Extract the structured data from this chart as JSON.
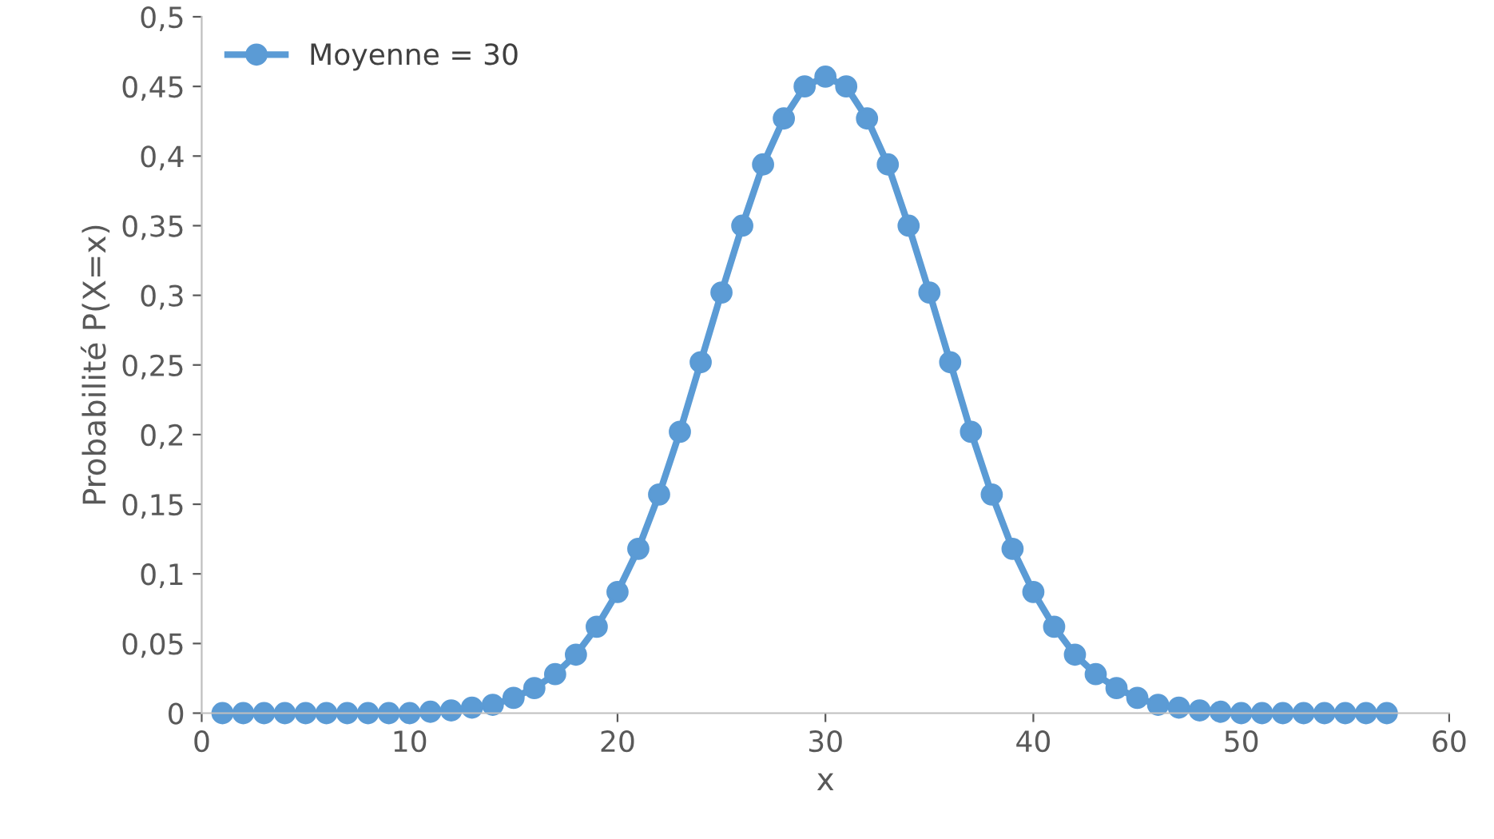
{
  "chart_data": {
    "type": "line",
    "xlabel": "x",
    "ylabel": "Probabilité P(X=x)",
    "x": [
      1,
      2,
      3,
      4,
      5,
      6,
      7,
      8,
      9,
      10,
      11,
      12,
      13,
      14,
      15,
      16,
      17,
      18,
      19,
      20,
      21,
      22,
      23,
      24,
      25,
      26,
      27,
      28,
      29,
      30,
      31,
      32,
      33,
      34,
      35,
      36,
      37,
      38,
      39,
      40,
      41,
      42,
      43,
      44,
      45,
      46,
      47,
      48,
      49,
      50,
      51,
      52,
      53,
      54,
      55,
      56,
      57
    ],
    "series": [
      {
        "name": "Moyenne = 30",
        "color": "#5b9bd5",
        "values": [
          0,
          0,
          0,
          0,
          0,
          0,
          0,
          0,
          0,
          0,
          0.001,
          0.002,
          0.004,
          0.006,
          0.011,
          0.018,
          0.028,
          0.042,
          0.062,
          0.087,
          0.118,
          0.157,
          0.202,
          0.252,
          0.302,
          0.35,
          0.394,
          0.427,
          0.45,
          0.457,
          0.45,
          0.427,
          0.394,
          0.35,
          0.302,
          0.252,
          0.202,
          0.157,
          0.118,
          0.087,
          0.062,
          0.042,
          0.028,
          0.018,
          0.011,
          0.006,
          0.004,
          0.002,
          0.001,
          0,
          0,
          0,
          0,
          0,
          0,
          0,
          0
        ]
      }
    ],
    "xlim": [
      0,
      60
    ],
    "xticks": [
      0,
      10,
      20,
      30,
      40,
      50,
      60
    ],
    "ylim": [
      0,
      0.5
    ],
    "yticks": [
      {
        "value": 0,
        "label": "0"
      },
      {
        "value": 0.05,
        "label": "0,05"
      },
      {
        "value": 0.1,
        "label": "0,1"
      },
      {
        "value": 0.15,
        "label": "0,15"
      },
      {
        "value": 0.2,
        "label": "0,2"
      },
      {
        "value": 0.25,
        "label": "0,25"
      },
      {
        "value": 0.3,
        "label": "0,3"
      },
      {
        "value": 0.35,
        "label": "0,35"
      },
      {
        "value": 0.4,
        "label": "0,4"
      },
      {
        "value": 0.45,
        "label": "0,45"
      },
      {
        "value": 0.5,
        "label": "0,5"
      }
    ],
    "grid": false,
    "legend": "top left",
    "marker": "circle",
    "line_style": "solid"
  }
}
